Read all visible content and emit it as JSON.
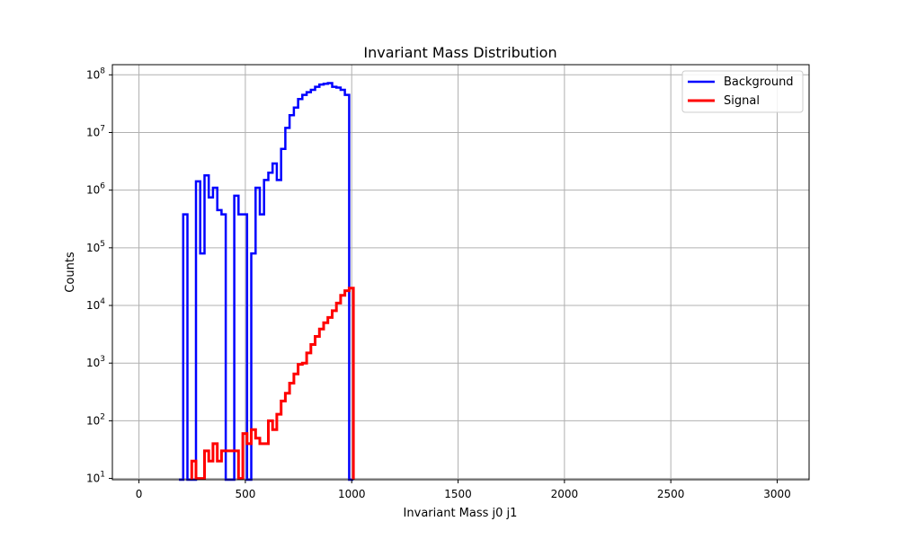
{
  "chart_data": {
    "type": "line",
    "title": "Invariant Mass Distribution",
    "xlabel": "Invariant Mass j0 j1",
    "ylabel": "Counts",
    "xlim": [
      -125,
      3150
    ],
    "ylim": [
      9.5,
      150000000
    ],
    "yscale": "log",
    "grid": true,
    "legend_position": "top-right",
    "x_ticks": [
      0,
      500,
      1000,
      1500,
      2000,
      2500,
      3000
    ],
    "x_tick_labels": [
      "0",
      "500",
      "1000",
      "1500",
      "2000",
      "2500",
      "3000"
    ],
    "y_ticks": [
      10,
      100,
      1000,
      10000,
      100000,
      1000000,
      10000000,
      100000000
    ],
    "y_tick_bases": [
      "10",
      "10",
      "10",
      "10",
      "10",
      "10",
      "10",
      "10"
    ],
    "y_tick_exps": [
      "1",
      "2",
      "3",
      "4",
      "5",
      "6",
      "7",
      "8"
    ],
    "series": [
      {
        "name": "Background",
        "color": "#0000ff",
        "line_width": 2.5,
        "bin_edges": [
          188,
          208,
          228,
          248,
          268,
          288,
          308,
          328,
          348,
          368,
          388,
          408,
          428,
          448,
          468,
          488,
          508,
          528,
          548,
          568,
          588,
          608,
          628,
          648,
          668,
          688,
          708,
          728,
          748,
          768,
          788,
          808,
          828,
          848,
          868,
          888,
          908,
          928,
          948,
          968,
          988,
          1008
        ],
        "values": [
          0,
          380000,
          0,
          0,
          1420000,
          80000,
          1800000,
          750000,
          1100000,
          450000,
          380000,
          0,
          0,
          800000,
          380000,
          380000,
          0,
          80000,
          1100000,
          380000,
          1500000,
          2000000,
          2900000,
          1500000,
          5200000,
          12000000,
          20000000,
          27000000,
          38000000,
          45000000,
          50000000,
          55000000,
          62000000,
          68000000,
          70000000,
          72000000,
          62000000,
          60000000,
          55000000,
          45000000,
          0
        ]
      },
      {
        "name": "Signal",
        "color": "#ff0000",
        "line_width": 3,
        "bin_edges": [
          248,
          268,
          288,
          308,
          328,
          348,
          368,
          388,
          408,
          428,
          448,
          468,
          488,
          508,
          528,
          548,
          568,
          588,
          608,
          628,
          648,
          668,
          688,
          708,
          728,
          748,
          768,
          788,
          808,
          828,
          848,
          868,
          888,
          908,
          928,
          948,
          968,
          988,
          1008
        ],
        "values": [
          20,
          10,
          10,
          30,
          20,
          40,
          20,
          30,
          30,
          30,
          30,
          10,
          60,
          40,
          70,
          50,
          40,
          40,
          100,
          70,
          130,
          220,
          300,
          450,
          650,
          950,
          1000,
          1500,
          2100,
          2900,
          3900,
          5000,
          6200,
          8100,
          11000,
          15000,
          18000,
          20000,
          0
        ]
      }
    ]
  }
}
